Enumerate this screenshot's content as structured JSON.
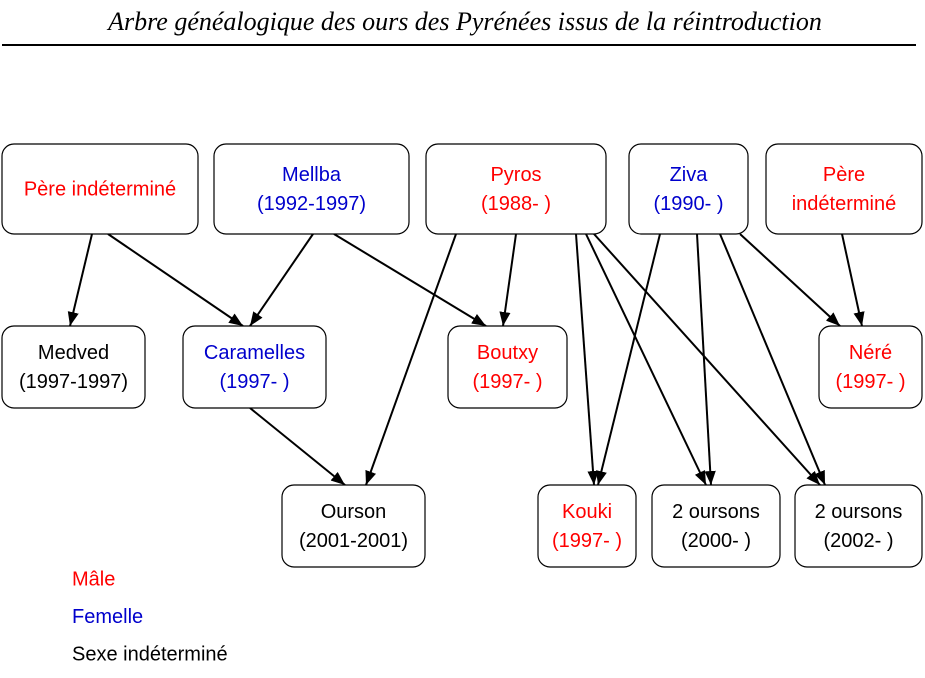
{
  "title": "Arbre généalogique des ours des Pyrénées issus de la réintroduction",
  "nodes": [
    {
      "lines": [
        "Père indéterminé"
      ],
      "color": "#ff0000"
    },
    {
      "lines": [
        "Mellba",
        "(1992-1997)"
      ],
      "color": "#0000cc"
    },
    {
      "lines": [
        "Pyros",
        "(1988- )"
      ],
      "color": "#ff0000"
    },
    {
      "lines": [
        "Ziva",
        "(1990- )"
      ],
      "color": "#0000cc"
    },
    {
      "lines": [
        "Père",
        "indéterminé"
      ],
      "color": "#ff0000"
    },
    {
      "lines": [
        "Medved",
        "(1997-1997)"
      ],
      "color": "#000000"
    },
    {
      "lines": [
        "Caramelles",
        "(1997- )"
      ],
      "color": "#0000cc"
    },
    {
      "lines": [
        "Boutxy",
        "(1997- )"
      ],
      "color": "#ff0000"
    },
    {
      "lines": [
        "Néré",
        "(1997- )"
      ],
      "color": "#ff0000"
    },
    {
      "lines": [
        "Ourson",
        "(2001-2001)"
      ],
      "color": "#000000"
    },
    {
      "lines": [
        "Kouki",
        "(1997- )"
      ],
      "color": "#ff0000"
    },
    {
      "lines": [
        "2 oursons",
        "(2000- )"
      ],
      "color": "#000000"
    },
    {
      "lines": [
        "2 oursons",
        "(2002- )"
      ],
      "color": "#000000"
    }
  ],
  "legend": [
    {
      "label": "Mâle",
      "color": "#ff0000"
    },
    {
      "label": "Femelle",
      "color": "#0000cc"
    },
    {
      "label": "Sexe indéterminé",
      "color": "#000000"
    }
  ]
}
